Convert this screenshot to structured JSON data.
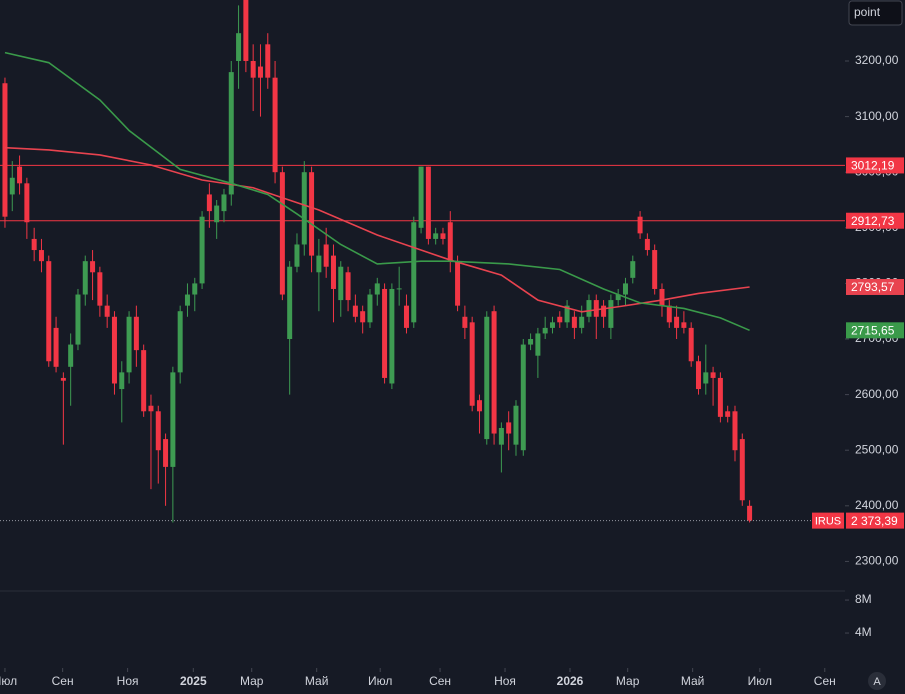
{
  "chart_data": {
    "type": "candlestick",
    "symbol": "IRUS",
    "toolbar_label": "point",
    "corner_icon": "A",
    "ylim": [
      2246.8,
      3309.7
    ],
    "yticks": [
      {
        "value": 3200,
        "label": "3200,00"
      },
      {
        "value": 3100,
        "label": "3100,00"
      },
      {
        "value": 3000,
        "label": "3000,00"
      },
      {
        "value": 2900,
        "label": "2900,00"
      },
      {
        "value": 2800,
        "label": "2800,00"
      },
      {
        "value": 2700,
        "label": "2700,00"
      },
      {
        "value": 2600,
        "label": "2600,00"
      },
      {
        "value": 2500,
        "label": "2500,00"
      },
      {
        "value": 2400,
        "label": "2400,00"
      },
      {
        "value": 2300,
        "label": "2300,00"
      }
    ],
    "xlim": [
      -0.68,
      115.07
    ],
    "xticks": [
      {
        "value": 0,
        "label": "Июл"
      },
      {
        "value": 7.9,
        "label": "Сен"
      },
      {
        "value": 16.8,
        "label": "Ноя"
      },
      {
        "value": 25.8,
        "label": "2025"
      },
      {
        "value": 33.8,
        "label": "Мар"
      },
      {
        "value": 42.7,
        "label": "Май"
      },
      {
        "value": 51.4,
        "label": "Июл"
      },
      {
        "value": 59.6,
        "label": "Сен"
      },
      {
        "value": 68.5,
        "label": "Ноя"
      },
      {
        "value": 77.4,
        "label": "2026"
      },
      {
        "value": 85.3,
        "label": "Мар"
      },
      {
        "value": 94.2,
        "label": "Май"
      },
      {
        "value": 103.4,
        "label": "Июл"
      },
      {
        "value": 112.3,
        "label": "Сен"
      }
    ],
    "volume_ylim": [
      0,
      9100000
    ],
    "volume_yticks": [
      {
        "value": 8000000,
        "label": "8M"
      },
      {
        "value": 4000000,
        "label": "4M"
      }
    ],
    "up_color": "#3e9b52",
    "down_color": "#f23645",
    "candles": [
      [
        3160,
        3170,
        2900,
        2920
      ],
      [
        2960,
        3020,
        2930,
        2990
      ],
      [
        3010,
        3030,
        2960,
        2980
      ],
      [
        2980,
        2990,
        2880,
        2910
      ],
      [
        2880,
        2900,
        2840,
        2860
      ],
      [
        2860,
        2880,
        2820,
        2840
      ],
      [
        2840,
        2850,
        2650,
        2660
      ],
      [
        2720,
        2740,
        2640,
        2650
      ],
      [
        2630,
        2640,
        2510,
        2625
      ],
      [
        2650,
        2710,
        2580,
        2690
      ],
      [
        2690,
        2790,
        2680,
        2780
      ],
      [
        2780,
        2850,
        2760,
        2840
      ],
      [
        2840,
        2860,
        2770,
        2820
      ],
      [
        2820,
        2830,
        2740,
        2760
      ],
      [
        2760,
        2780,
        2720,
        2740
      ],
      [
        2740,
        2750,
        2600,
        2620
      ],
      [
        2610,
        2660,
        2550,
        2640
      ],
      [
        2640,
        2750,
        2620,
        2740
      ],
      [
        2740,
        2760,
        2650,
        2680
      ],
      [
        2680,
        2690,
        2560,
        2570
      ],
      [
        2580,
        2600,
        2430,
        2570
      ],
      [
        2570,
        2580,
        2440,
        2500
      ],
      [
        2520,
        2530,
        2400,
        2470
      ],
      [
        2470,
        2650,
        2370,
        2640
      ],
      [
        2640,
        2760,
        2620,
        2750
      ],
      [
        2760,
        2800,
        2740,
        2780
      ],
      [
        2780,
        2810,
        2750,
        2800
      ],
      [
        2800,
        2930,
        2790,
        2920
      ],
      [
        2960,
        2980,
        2900,
        2930
      ],
      [
        2910,
        2950,
        2880,
        2940
      ],
      [
        2930,
        2970,
        2910,
        2960
      ],
      [
        2960,
        3200,
        2940,
        3180
      ],
      [
        3200,
        3300,
        3150,
        3250
      ],
      [
        3310,
        3320,
        3180,
        3200
      ],
      [
        3200,
        3230,
        3110,
        3170
      ],
      [
        3190,
        3230,
        3100,
        3170
      ],
      [
        3230,
        3250,
        3150,
        3170
      ],
      [
        3170,
        3200,
        2980,
        3000
      ],
      [
        3000,
        3010,
        2770,
        2780
      ],
      [
        2700,
        2840,
        2600,
        2830
      ],
      [
        2830,
        2890,
        2820,
        2870
      ],
      [
        2870,
        3020,
        2850,
        3000
      ],
      [
        3000,
        3010,
        2820,
        2850
      ],
      [
        2820,
        2880,
        2750,
        2850
      ],
      [
        2870,
        2900,
        2810,
        2830
      ],
      [
        2850,
        2870,
        2730,
        2790
      ],
      [
        2770,
        2840,
        2740,
        2830
      ],
      [
        2820,
        2830,
        2750,
        2770
      ],
      [
        2760,
        2780,
        2730,
        2740
      ],
      [
        2750,
        2760,
        2710,
        2730
      ],
      [
        2730,
        2790,
        2720,
        2780
      ],
      [
        2780,
        2810,
        2760,
        2800
      ],
      [
        2790,
        2800,
        2620,
        2630
      ],
      [
        2620,
        2800,
        2610,
        2790
      ],
      [
        2790,
        2830,
        2760,
        2791
      ],
      [
        2760,
        2780,
        2710,
        2720
      ],
      [
        2730,
        2920,
        2720,
        2910
      ],
      [
        2900,
        3010,
        2890,
        3010
      ],
      [
        3010,
        3010,
        2870,
        2880
      ],
      [
        2880,
        2900,
        2870,
        2890
      ],
      [
        2890,
        2900,
        2870,
        2880
      ],
      [
        2910,
        2930,
        2820,
        2840
      ],
      [
        2840,
        2850,
        2750,
        2760
      ],
      [
        2740,
        2760,
        2700,
        2720
      ],
      [
        2730,
        2740,
        2570,
        2580
      ],
      [
        2590,
        2600,
        2530,
        2570
      ],
      [
        2520,
        2750,
        2510,
        2740
      ],
      [
        2750,
        2760,
        2510,
        2530
      ],
      [
        2510,
        2550,
        2460,
        2540
      ],
      [
        2550,
        2570,
        2500,
        2530
      ],
      [
        2510,
        2590,
        2490,
        2580
      ],
      [
        2500,
        2700,
        2490,
        2690
      ],
      [
        2690,
        2710,
        2680,
        2700
      ],
      [
        2670,
        2720,
        2630,
        2710
      ],
      [
        2710,
        2740,
        2700,
        2720
      ],
      [
        2720,
        2740,
        2710,
        2730
      ],
      [
        2740,
        2750,
        2720,
        2730
      ],
      [
        2730,
        2770,
        2720,
        2760
      ],
      [
        2740,
        2750,
        2700,
        2720
      ],
      [
        2720,
        2760,
        2710,
        2740
      ],
      [
        2740,
        2780,
        2730,
        2770
      ],
      [
        2770,
        2780,
        2700,
        2740
      ],
      [
        2760,
        2770,
        2720,
        2740
      ],
      [
        2720,
        2780,
        2700,
        2770
      ],
      [
        2770,
        2790,
        2760,
        2780
      ],
      [
        2780,
        2810,
        2760,
        2800
      ],
      [
        2810,
        2850,
        2800,
        2840
      ],
      [
        2920,
        2930,
        2880,
        2890
      ],
      [
        2880,
        2890,
        2850,
        2860
      ],
      [
        2860,
        2870,
        2780,
        2790
      ],
      [
        2790,
        2800,
        2740,
        2760
      ],
      [
        2760,
        2770,
        2720,
        2730
      ],
      [
        2740,
        2760,
        2700,
        2720
      ],
      [
        2730,
        2750,
        2710,
        2720
      ],
      [
        2720,
        2730,
        2650,
        2660
      ],
      [
        2660,
        2670,
        2600,
        2610
      ],
      [
        2620,
        2690,
        2600,
        2640
      ],
      [
        2640,
        2650,
        2580,
        2630
      ],
      [
        2630,
        2640,
        2550,
        2560
      ],
      [
        2570,
        2580,
        2550,
        2560
      ],
      [
        2570,
        2580,
        2480,
        2500
      ],
      [
        2520,
        2530,
        2400,
        2410
      ],
      [
        2400,
        2410,
        2370,
        2373.39
      ]
    ],
    "last_label": "2 373,39",
    "levels": [
      {
        "value": 3012.19,
        "label": "3012,19",
        "color": "#f23645"
      },
      {
        "value": 2912.73,
        "label": "2912,73",
        "color": "#f23645"
      }
    ],
    "moving_averages": [
      {
        "color": "#e8434f",
        "label": "2793,57",
        "x": [
          0,
          6,
          13,
          20,
          27,
          34,
          38,
          43,
          51,
          61,
          68,
          73,
          79,
          84,
          90,
          95,
          102
        ],
        "values": [
          3044,
          3040,
          3031,
          3013,
          2986,
          2972,
          2954,
          2932,
          2887,
          2842,
          2815,
          2770,
          2749,
          2758,
          2770,
          2782,
          2793.57
        ]
      },
      {
        "color": "#3a9a4a",
        "label": "2715,65",
        "x": [
          0,
          6,
          13,
          17,
          24,
          31,
          36,
          40,
          46,
          51,
          57,
          61,
          69,
          76,
          82,
          87,
          93,
          98,
          102
        ],
        "values": [
          3215,
          3197,
          3130,
          3075,
          3005,
          2980,
          2960,
          2925,
          2870,
          2835,
          2840,
          2840,
          2835,
          2825,
          2790,
          2765,
          2755,
          2738,
          2715.65
        ]
      }
    ]
  }
}
